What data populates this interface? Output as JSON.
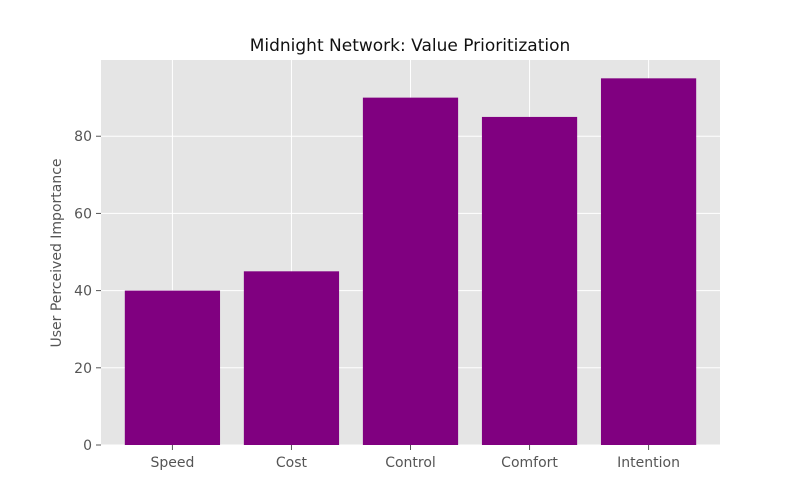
{
  "chart_data": {
    "type": "bar",
    "title": "Midnight Network: Value Prioritization",
    "xlabel": "",
    "ylabel": "User Perceived Importance",
    "categories": [
      "Speed",
      "Cost",
      "Control",
      "Comfort",
      "Intention"
    ],
    "values": [
      40,
      45,
      90,
      85,
      95
    ],
    "ylim": [
      0,
      99.75
    ],
    "yticks": [
      0,
      20,
      40,
      60,
      80
    ],
    "grid": true,
    "bar_color": "#800080",
    "background_color": "#e5e5e5",
    "grid_color": "#ffffff"
  }
}
